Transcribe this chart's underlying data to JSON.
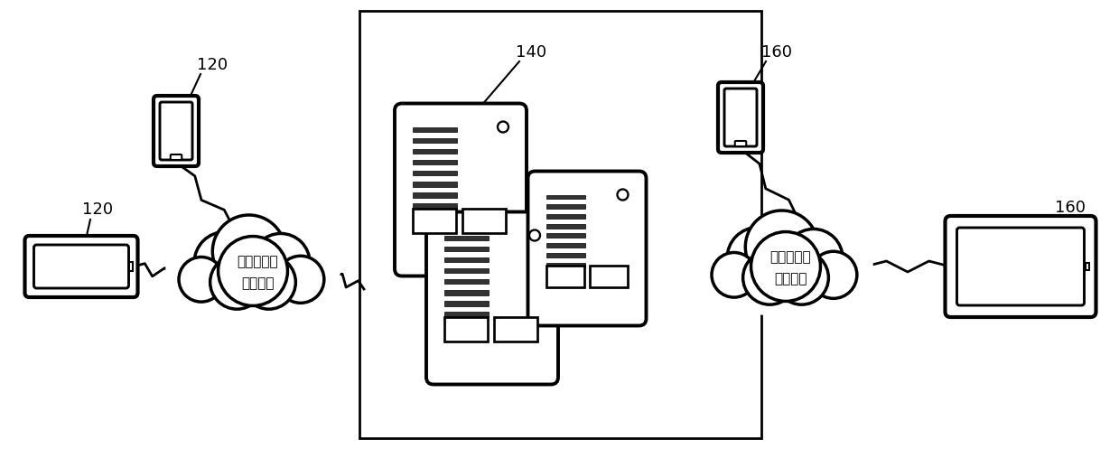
{
  "background_color": "#ffffff",
  "fig_width": 12.39,
  "fig_height": 4.97,
  "dpi": 100,
  "labels": {
    "120_top": "120",
    "120_left": "120",
    "140": "140",
    "160_top": "160",
    "160_right": "160",
    "cloud1_line1": "有线网络或",
    "cloud1_line2": "无线网络",
    "cloud2_line1": "有线网络或",
    "cloud2_line2": "无线网络"
  }
}
